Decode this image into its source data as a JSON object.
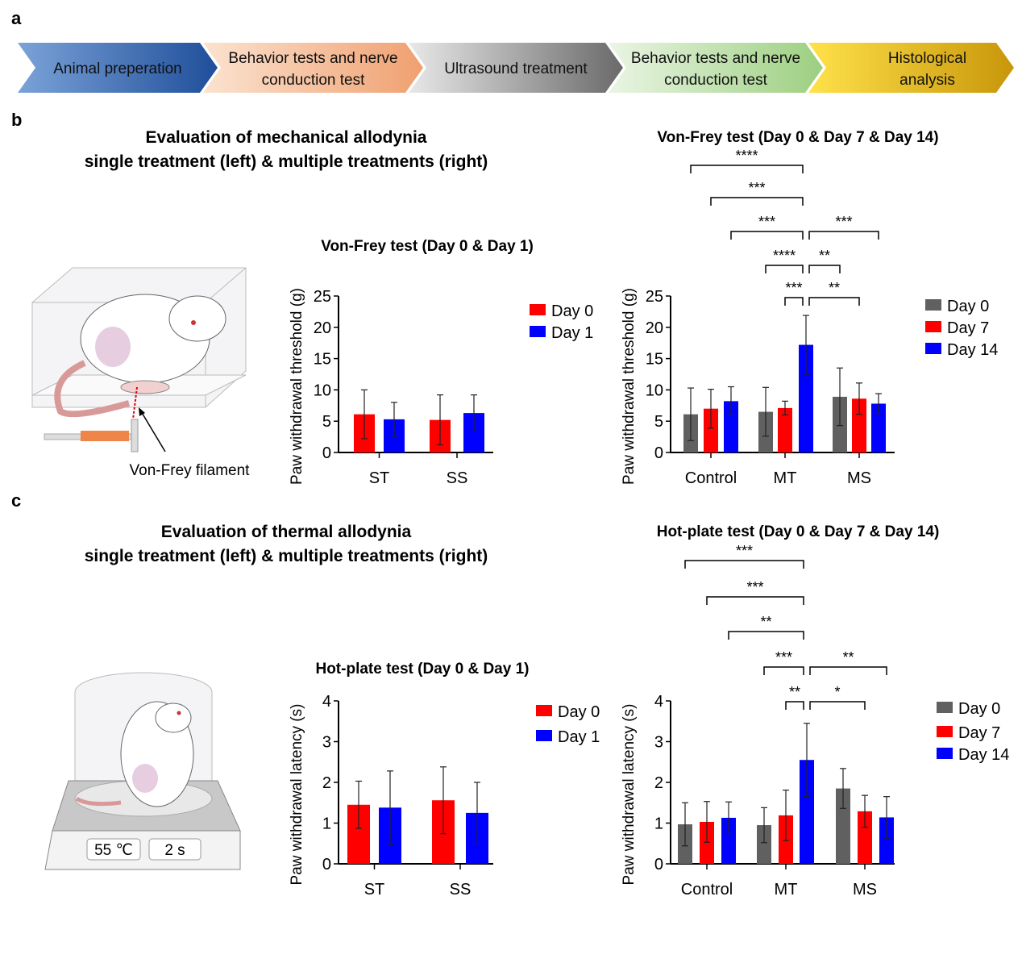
{
  "panels": {
    "a": "a",
    "b": "b",
    "c": "c"
  },
  "workflow": [
    {
      "label": "Animal preperation",
      "color1": "#7ba3d8",
      "color2": "#1f4e9a"
    },
    {
      "label": "Behavior tests and nerve conduction test",
      "color1": "#fbe3d0",
      "color2": "#f0a070"
    },
    {
      "label": "Ultrasound treatment",
      "color1": "#e8e8e8",
      "color2": "#6a6a6a"
    },
    {
      "label": "Behavior tests and nerve conduction test",
      "color1": "#eaf5e4",
      "color2": "#9ccf80"
    },
    {
      "label": "Histological analysis",
      "color1": "#ffe24a",
      "color2": "#c8960a"
    }
  ],
  "section_b": {
    "title_line1": "Evaluation of mechanical allodynia",
    "title_line2": "single treatment (left) & multiple treatments (right)",
    "illustration_label": "Von-Frey filament"
  },
  "section_c": {
    "title_line1": "Evaluation of thermal allodynia",
    "title_line2": "single treatment (left) & multiple treatments (right)",
    "temp_display": "55 ℃",
    "time_display": "2 s"
  },
  "colors": {
    "day0_single": "#ff0000",
    "day1_single": "#0000ff",
    "day0": "#606060",
    "day7": "#ff0000",
    "day14": "#0000ff"
  },
  "chart_data": [
    {
      "id": "vf-single",
      "type": "bar",
      "title": "Von-Frey test (Day 0 & Day 1)",
      "ylabel": "Paw withdrawal threshold (g)",
      "ylim": [
        0,
        25
      ],
      "yticks": [
        0,
        5,
        10,
        15,
        20,
        25
      ],
      "categories": [
        "ST",
        "SS"
      ],
      "legend": "right",
      "series": [
        {
          "name": "Day 0",
          "color": "#ff0000",
          "values": [
            6.1,
            5.2
          ],
          "errors": [
            3.9,
            4.0
          ]
        },
        {
          "name": "Day 1",
          "color": "#0000ff",
          "values": [
            5.3,
            6.3
          ],
          "errors": [
            2.7,
            2.9
          ]
        }
      ],
      "brackets": []
    },
    {
      "id": "vf-multi",
      "type": "bar",
      "title": "Von-Frey test (Day 0 & Day 7 & Day 14)",
      "ylabel": "Paw withdrawal threshold (g)",
      "ylim": [
        0,
        25
      ],
      "yticks": [
        0,
        5,
        10,
        15,
        20,
        25
      ],
      "categories": [
        "Control",
        "MT",
        "MS"
      ],
      "legend": "right",
      "series": [
        {
          "name": "Day 0",
          "color": "#606060",
          "values": [
            6.1,
            6.5,
            8.9
          ],
          "errors": [
            4.2,
            3.9,
            4.6
          ]
        },
        {
          "name": "Day 7",
          "color": "#ff0000",
          "values": [
            7.0,
            7.1,
            8.6
          ],
          "errors": [
            3.1,
            1.1,
            2.5
          ]
        },
        {
          "name": "Day 14",
          "color": "#0000ff",
          "values": [
            8.2,
            17.2,
            7.8
          ],
          "errors": [
            2.3,
            4.7,
            1.6
          ]
        }
      ],
      "brackets": [
        {
          "from": [
            0,
            0
          ],
          "to": [
            1,
            2
          ],
          "label": "****"
        },
        {
          "from": [
            0,
            1
          ],
          "to": [
            1,
            2
          ],
          "label": "***"
        },
        {
          "from": [
            0,
            2
          ],
          "to": [
            1,
            2
          ],
          "label": "***"
        },
        {
          "from": [
            1,
            2
          ],
          "to": [
            2,
            2
          ],
          "label": "***"
        },
        {
          "from": [
            1,
            0
          ],
          "to": [
            1,
            2
          ],
          "label": "****"
        },
        {
          "from": [
            1,
            2
          ],
          "to": [
            2,
            0
          ],
          "label": "**"
        },
        {
          "from": [
            1,
            1
          ],
          "to": [
            1,
            2
          ],
          "label": "***"
        },
        {
          "from": [
            1,
            2
          ],
          "to": [
            2,
            1
          ],
          "label": "**"
        }
      ]
    },
    {
      "id": "hp-single",
      "type": "bar",
      "title": "Hot-plate test (Day 0 & Day 1)",
      "ylabel": "Paw withdrawal latency (s)",
      "ylim": [
        0,
        4
      ],
      "yticks": [
        0,
        1,
        2,
        3,
        4
      ],
      "categories": [
        "ST",
        "SS"
      ],
      "legend": "right",
      "series": [
        {
          "name": "Day 0",
          "color": "#ff0000",
          "values": [
            1.45,
            1.56
          ],
          "errors": [
            0.58,
            0.82
          ]
        },
        {
          "name": "Day 1",
          "color": "#0000ff",
          "values": [
            1.38,
            1.25
          ],
          "errors": [
            0.9,
            0.75
          ]
        }
      ],
      "brackets": []
    },
    {
      "id": "hp-multi",
      "type": "bar",
      "title": "Hot-plate test (Day 0 & Day 7 & Day 14)",
      "ylabel": "Paw withdrawal latency (s)",
      "ylim": [
        0,
        4
      ],
      "yticks": [
        0,
        1,
        2,
        3,
        4
      ],
      "categories": [
        "Control",
        "MT",
        "MS"
      ],
      "legend": "right",
      "series": [
        {
          "name": "Day 0",
          "color": "#606060",
          "values": [
            0.97,
            0.95,
            1.85
          ],
          "errors": [
            0.53,
            0.43,
            0.49
          ]
        },
        {
          "name": "Day 7",
          "color": "#ff0000",
          "values": [
            1.03,
            1.19,
            1.29
          ],
          "errors": [
            0.5,
            0.62,
            0.39
          ]
        },
        {
          "name": "Day 14",
          "color": "#0000ff",
          "values": [
            1.13,
            2.55,
            1.14
          ],
          "errors": [
            0.39,
            0.9,
            0.51
          ]
        }
      ],
      "brackets": [
        {
          "from": [
            0,
            0
          ],
          "to": [
            1,
            2
          ],
          "label": "***"
        },
        {
          "from": [
            0,
            1
          ],
          "to": [
            1,
            2
          ],
          "label": "***"
        },
        {
          "from": [
            0,
            2
          ],
          "to": [
            1,
            2
          ],
          "label": "**"
        },
        {
          "from": [
            1,
            0
          ],
          "to": [
            1,
            2
          ],
          "label": "***"
        },
        {
          "from": [
            1,
            2
          ],
          "to": [
            2,
            2
          ],
          "label": "**"
        },
        {
          "from": [
            1,
            1
          ],
          "to": [
            1,
            2
          ],
          "label": "**"
        },
        {
          "from": [
            1,
            2
          ],
          "to": [
            2,
            1
          ],
          "label": "*"
        }
      ]
    }
  ]
}
